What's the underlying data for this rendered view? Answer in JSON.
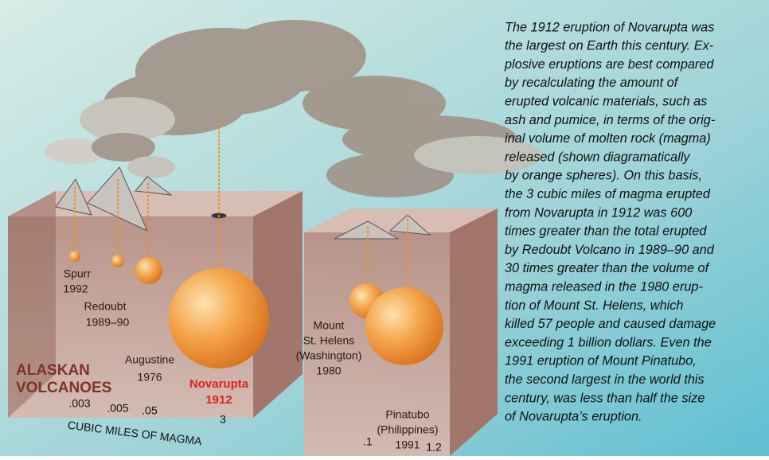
{
  "paragraph": [
    "The 1912 eruption of Novarupta was",
    "the largest on Earth this century. Ex-",
    "plosive eruptions are best compared",
    "by recalculating the amount of",
    "erupted volcanic materials, such as",
    "ash and pumice, in terms of the orig-",
    "inal volume of molten rock (magma)",
    "released (shown diagramatically",
    "by orange spheres). On this basis,",
    "the 3 cubic miles of magma erupted",
    "from Novarupta in 1912 was 600",
    "times greater than the total erupted",
    "by Redoubt Volcano in 1989–90 and",
    "30 times greater than the volume of",
    "magma released in the 1980 erup-",
    "tion of Mount St. Helens, which",
    "killed 57 people and caused damage",
    "exceeding 1 billion dollars. Even the",
    "1991 eruption of Mount Pinatubo,",
    "the second largest in the world this",
    "century, was less than half the size",
    "of Novarupta’s eruption."
  ],
  "group_title": [
    "ALASKAN",
    "VOLCANOES"
  ],
  "axis_label": "CUBIC MILES OF MAGMA",
  "volcanoes": [
    {
      "label": [
        "Spurr",
        "1992"
      ],
      "volume": ".003"
    },
    {
      "label": [
        "Redoubt",
        "1989–90"
      ],
      "volume": ".005"
    },
    {
      "label": [
        "Augustine",
        "1976"
      ],
      "volume": ".05"
    },
    {
      "label": [
        "Novarupta",
        "1912"
      ],
      "volume": "3"
    },
    {
      "label": [
        "Mount",
        "St. Helens",
        "(Washington)",
        "1980"
      ],
      "volume": ".1"
    },
    {
      "label": [
        "Pinatubo",
        "(Philippines)",
        "1991"
      ],
      "volume": "1.2"
    }
  ]
}
